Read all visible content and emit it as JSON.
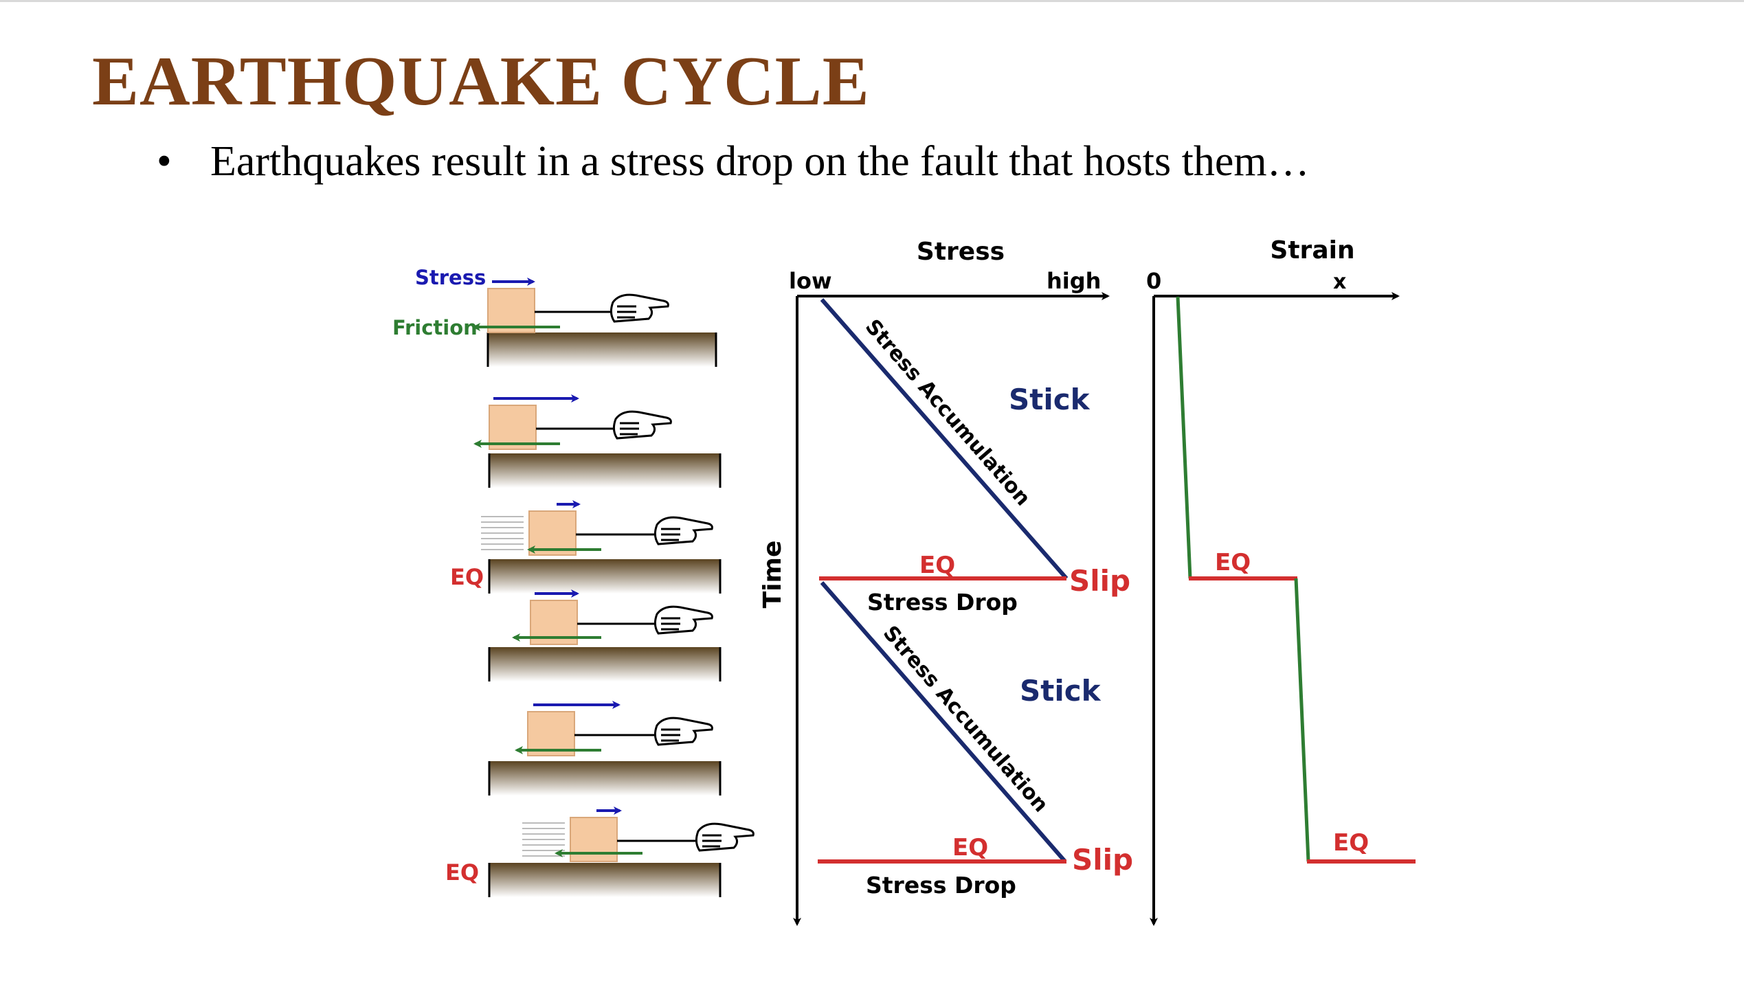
{
  "slide": {
    "title": "EARTHQUAKE CYCLE",
    "bullet_marker": "•",
    "bullet_text": "Earthquakes result in a stress drop on the fault that hosts them…"
  },
  "blocks": {
    "stress_label": "Stress",
    "friction_label": "Friction",
    "eq_label": "EQ"
  },
  "stress_plot": {
    "x_title": "Stress",
    "x_low": "low",
    "x_high": "high",
    "y_title": "Time",
    "accumulation_label": "Stress Accumulation",
    "stick_label": "Stick",
    "slip_label": "Slip",
    "eq_label": "EQ",
    "drop_label": "Stress Drop"
  },
  "strain_plot": {
    "x_title": "Strain",
    "x_zero": "0",
    "x_marker": "x",
    "eq_label": "EQ"
  },
  "colors": {
    "title": "#7b3f16",
    "stress_blue": "#1a1ab0",
    "stick_navy": "#1a2a6e",
    "friction_green": "#2e7d32",
    "eq_red": "#d32f2f",
    "block": "#f5c9a0",
    "ground_dark": "#5a4320"
  }
}
